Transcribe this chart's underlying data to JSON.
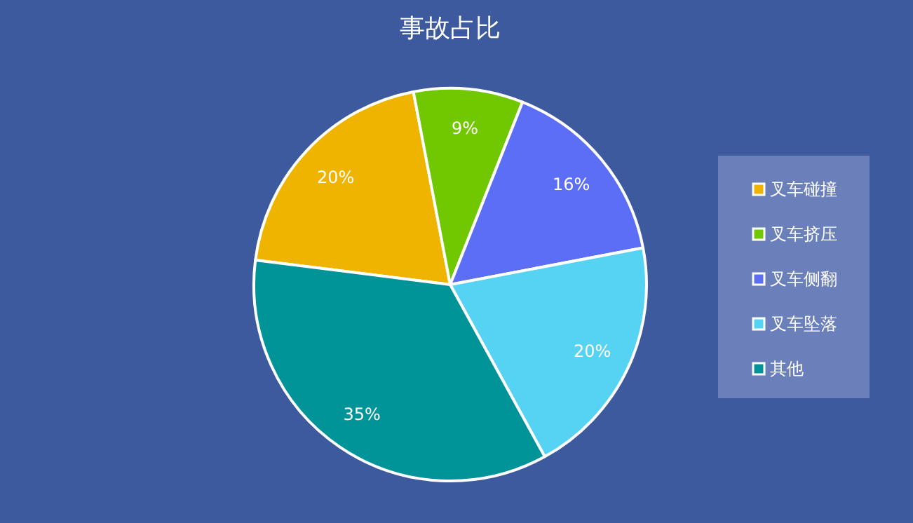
{
  "chart_data": {
    "type": "pie",
    "title": "事故占比",
    "categories": [
      "叉车碰撞",
      "叉车挤压",
      "叉车侧翻",
      "叉车坠落",
      "其他"
    ],
    "values": [
      20,
      9,
      16,
      20,
      35
    ],
    "colors": [
      "#efb400",
      "#72c800",
      "#5b6ef5",
      "#56d2f2",
      "#009498"
    ],
    "value_labels": [
      "20%",
      "9%",
      "16%",
      "20%",
      "35%"
    ],
    "legend": "right"
  }
}
